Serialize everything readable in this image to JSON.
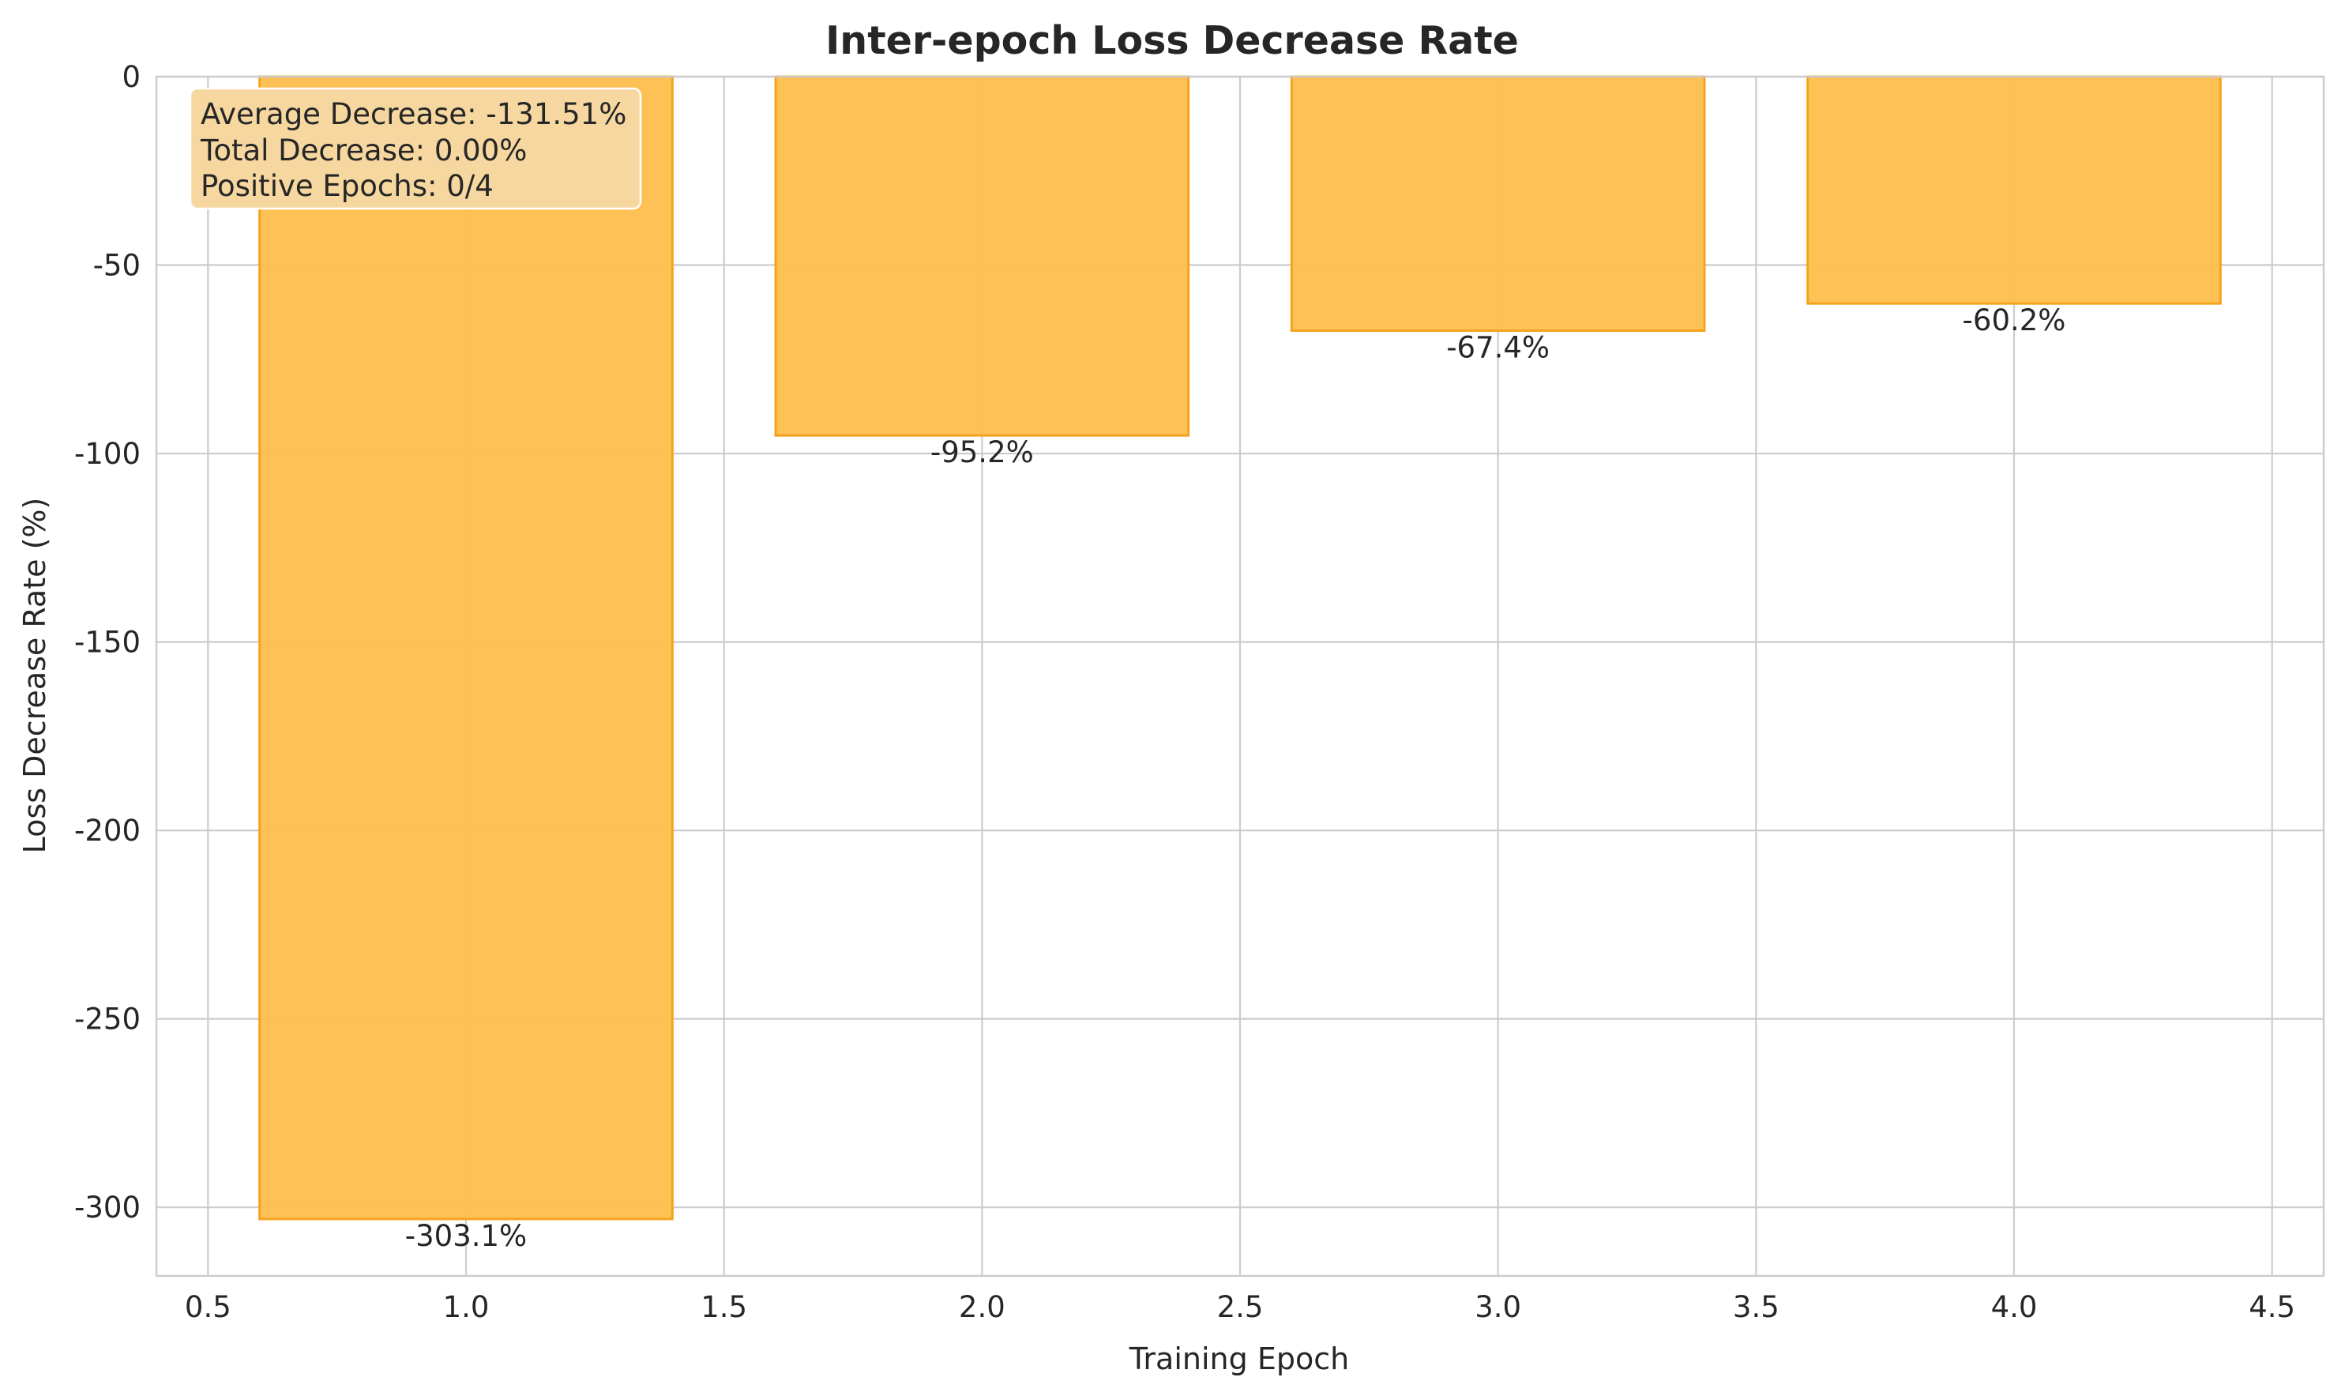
{
  "chart_data": {
    "type": "bar",
    "title": "Inter-epoch Loss Decrease Rate",
    "xlabel": "Training Epoch",
    "ylabel": "Loss Decrease Rate (%)",
    "x": [
      1,
      2,
      3,
      4
    ],
    "values": [
      -303.1,
      -95.2,
      -67.4,
      -60.2
    ],
    "bar_labels": [
      "-303.1%",
      "-95.2%",
      "-67.4%",
      "-60.2%"
    ],
    "bar_width": 0.8,
    "xlim": [
      0.4,
      4.6
    ],
    "ylim": [
      -318.2,
      0
    ],
    "xticks": [
      0.5,
      1.0,
      1.5,
      2.0,
      2.5,
      3.0,
      3.5,
      4.0,
      4.5
    ],
    "xtick_labels": [
      "0.5",
      "1.0",
      "1.5",
      "2.0",
      "2.5",
      "3.0",
      "3.5",
      "4.0",
      "4.5"
    ],
    "yticks": [
      0,
      -50,
      -100,
      -150,
      -200,
      -250,
      -300
    ],
    "ytick_labels": [
      "0",
      "-50",
      "-100",
      "-150",
      "-200",
      "-250",
      "-300"
    ],
    "grid": true,
    "colors": {
      "bar_fill": "#fdbe4c",
      "bar_edge": "#f5a31e",
      "grid": "#cccccc",
      "stats_box": "#f6d7a0"
    },
    "stats": {
      "placement": "top-left",
      "lines": [
        "Average Decrease: -131.51%",
        "Total Decrease: 0.00%",
        "Positive Epochs: 0/4"
      ]
    }
  }
}
